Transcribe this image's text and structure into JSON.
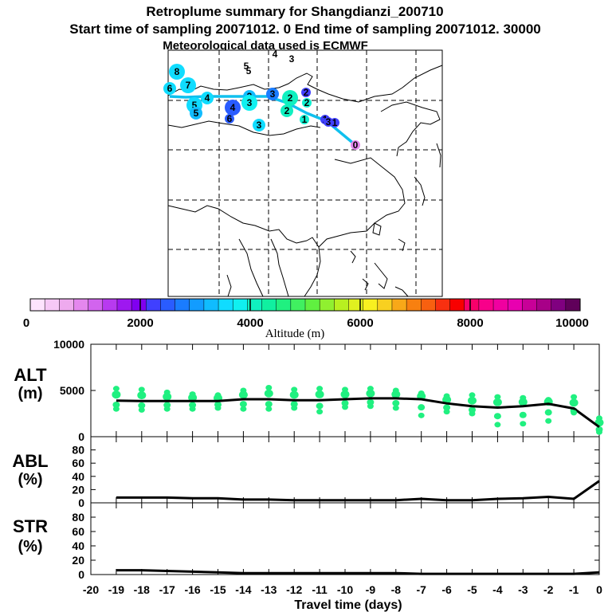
{
  "header": {
    "title": "Retroplume summary for Shangdianzi_200710",
    "sampling": "Start time of sampling 20071012.     0     End time of sampling 20071012. 30000",
    "met": "Meteorological data used is ECMWF"
  },
  "colorbar": {
    "label": "Altitude (m)",
    "ticks": [
      "0",
      "2000",
      "4000",
      "6000",
      "8000",
      "10000"
    ],
    "colors": [
      "#fde3fd",
      "#f6c8f6",
      "#eeaaee",
      "#e487ee",
      "#d264ee",
      "#b83af0",
      "#9e18f0",
      "#8000f0",
      "#4040ff",
      "#2a5cff",
      "#1a7cff",
      "#129cff",
      "#10bcff",
      "#10dcff",
      "#10f0f0",
      "#10f0c0",
      "#10f0a0",
      "#20f080",
      "#40f060",
      "#60f040",
      "#90f030",
      "#b8f020",
      "#e0f020",
      "#f8f020",
      "#f8d020",
      "#f8a818",
      "#f88010",
      "#f86010",
      "#f83010",
      "#f80000",
      "#f8006a",
      "#f8008a",
      "#f000a0",
      "#e800b0",
      "#c80098",
      "#a80088",
      "#800080",
      "#60005a"
    ]
  },
  "map": {
    "labels": [
      {
        "t": "8",
        "c": "#10dcff",
        "s": "big"
      },
      {
        "t": "7",
        "c": "#10dcff",
        "s": "big"
      },
      {
        "t": "6",
        "c": "#10dcff",
        "s": "med"
      },
      {
        "t": "5",
        "c": "#10dcff",
        "s": "big"
      },
      {
        "t": "4",
        "c": "#10dcff",
        "s": "med"
      },
      {
        "t": "5",
        "c": "#12bcff",
        "s": "med"
      },
      {
        "t": "3",
        "c": "#12bcff",
        "s": "med"
      },
      {
        "t": "4",
        "c": "#2a5cff",
        "s": "big"
      },
      {
        "t": "6",
        "c": "#2a5cff",
        "s": "small"
      },
      {
        "t": "3",
        "c": "#10f0f0",
        "s": "big"
      },
      {
        "t": "3",
        "c": "#1a7cff",
        "s": "med"
      },
      {
        "t": "3",
        "c": "#10dcff",
        "s": "med"
      },
      {
        "t": "2",
        "c": "#10f0c0",
        "s": "big"
      },
      {
        "t": "2",
        "c": "#4040ff",
        "s": "small"
      },
      {
        "t": "2",
        "c": "#10f0c0",
        "s": "med"
      },
      {
        "t": "2",
        "c": "#10f0d0",
        "s": "small"
      },
      {
        "t": "1",
        "c": "#10f0d0",
        "s": "small"
      },
      {
        "t": "1",
        "c": "#4040ff",
        "s": "small"
      },
      {
        "t": "1",
        "c": "#4040ff",
        "s": "small"
      },
      {
        "t": "0",
        "c": "#e487ee",
        "s": "small"
      },
      {
        "t": "5",
        "c": "#10f0a0",
        "s": "tiny"
      },
      {
        "t": "5",
        "c": "#10dcff",
        "s": "tiny"
      },
      {
        "t": "4",
        "c": "#ffffff",
        "s": "tiny"
      },
      {
        "t": "3",
        "c": "#e487ee",
        "s": "tiny"
      },
      {
        "t": "3",
        "c": "#4040ff",
        "s": "small"
      }
    ],
    "track_color": "#10c0ee"
  },
  "chart_data": [
    {
      "type": "line",
      "name": "ALT",
      "title": "ALT (m)",
      "ylabel": "ALT (m)",
      "xlabel": "Travel time (days)",
      "xlim": [
        -20,
        0
      ],
      "ylim": [
        0,
        10000
      ],
      "yticks": [
        0,
        5000,
        10000
      ],
      "x": [
        -19,
        -18,
        -17,
        -16,
        -15,
        -14,
        -13,
        -12,
        -11,
        -10,
        -9,
        -8,
        -7,
        -6,
        -5,
        -4,
        -3,
        -2,
        -1,
        0
      ],
      "series": [
        {
          "name": "mean altitude",
          "color": "#000000",
          "values": [
            3900,
            3850,
            3850,
            3850,
            3850,
            4050,
            4050,
            3950,
            3950,
            4050,
            4150,
            4150,
            4050,
            3600,
            3300,
            3150,
            3300,
            3550,
            3050,
            1050
          ]
        },
        {
          "name": "cluster spread high",
          "color": "#20f080",
          "values": [
            5200,
            5100,
            4800,
            4600,
            4500,
            5000,
            5300,
            5100,
            5200,
            5100,
            5200,
            5000,
            4700,
            4400,
            4500,
            4300,
            4200,
            4000,
            4300,
            2000
          ]
        },
        {
          "name": "cluster spread low",
          "color": "#20f080",
          "values": [
            3000,
            2900,
            3000,
            3000,
            3100,
            3000,
            3000,
            3100,
            2700,
            3200,
            3300,
            3100,
            2300,
            2700,
            2500,
            1300,
            1400,
            1700,
            2600,
            500
          ]
        }
      ]
    },
    {
      "type": "line",
      "name": "ABL",
      "title": "ABL (%)",
      "ylabel": "ABL (%)",
      "xlim": [
        -20,
        0
      ],
      "ylim": [
        0,
        100
      ],
      "yticks": [
        0,
        20,
        40,
        60,
        80
      ],
      "x": [
        -19,
        -18,
        -17,
        -16,
        -15,
        -14,
        -13,
        -12,
        -11,
        -10,
        -9,
        -8,
        -7,
        -6,
        -5,
        -4,
        -3,
        -2,
        -1,
        0
      ],
      "series": [
        {
          "name": "ABL fraction",
          "color": "#000000",
          "values": [
            8,
            8,
            8,
            7,
            7,
            5,
            5,
            4,
            4,
            4,
            4,
            4,
            6,
            4,
            4,
            6,
            7,
            9,
            6,
            33
          ]
        }
      ]
    },
    {
      "type": "line",
      "name": "STR",
      "title": "STR (%)",
      "ylabel": "STR (%)",
      "xlim": [
        -20,
        0
      ],
      "ylim": [
        0,
        100
      ],
      "yticks": [
        0,
        20,
        40,
        60,
        80
      ],
      "x": [
        -19,
        -18,
        -17,
        -16,
        -15,
        -14,
        -13,
        -12,
        -11,
        -10,
        -9,
        -8,
        -7,
        -6,
        -5,
        -4,
        -3,
        -2,
        -1,
        0
      ],
      "series": [
        {
          "name": "STR fraction",
          "color": "#000000",
          "values": [
            6,
            6,
            5,
            4,
            3,
            2,
            2,
            2,
            2,
            2,
            2,
            2,
            1,
            1,
            1,
            1,
            1,
            1,
            1,
            3
          ]
        }
      ]
    }
  ],
  "axes": {
    "alt_label_1": "ALT",
    "alt_label_2": "(m)",
    "abl_label_1": "ABL",
    "abl_label_2": "(%)",
    "str_label_1": "STR",
    "str_label_2": "(%)",
    "alt_ticks": [
      "0",
      "5000",
      "10000"
    ],
    "pct_ticks": [
      "0",
      "20",
      "40",
      "60",
      "80"
    ],
    "x_ticks": [
      "-20",
      "-19",
      "-18",
      "-17",
      "-16",
      "-15",
      "-14",
      "-13",
      "-12",
      "-11",
      "-10",
      "-9",
      "-8",
      "-7",
      "-6",
      "-5",
      "-4",
      "-3",
      "-2",
      "-1",
      "0"
    ],
    "xlabel": "Travel time (days)"
  }
}
